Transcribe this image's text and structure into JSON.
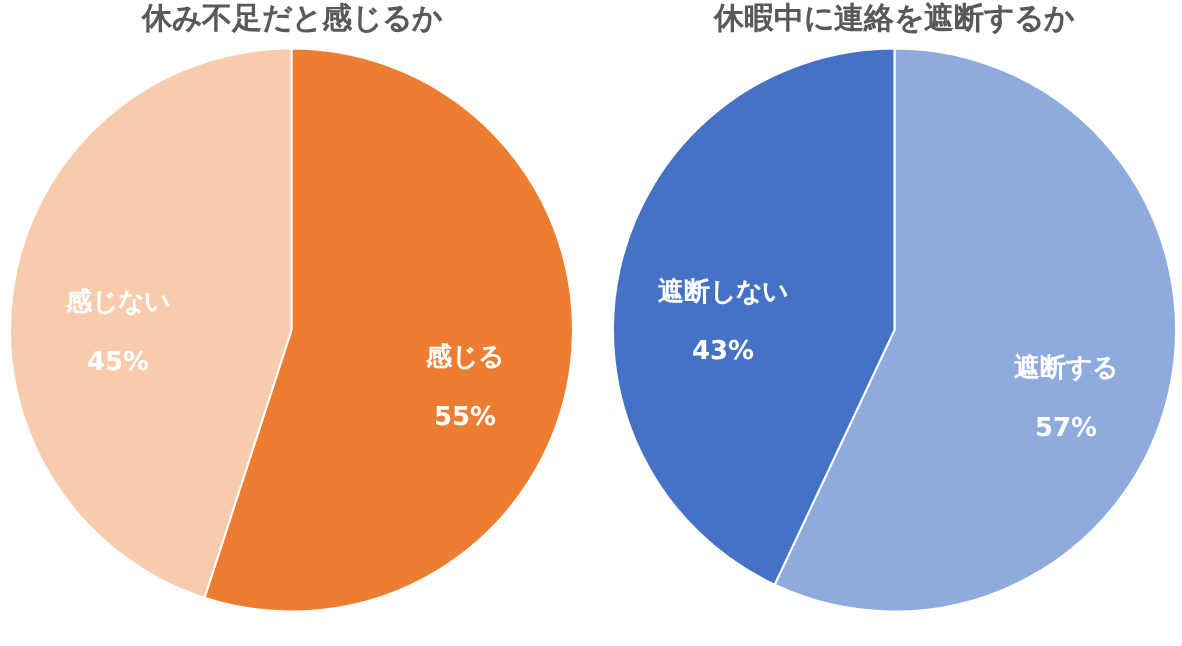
{
  "chart_data": [
    {
      "type": "pie",
      "title": "休み不足だと感じるか",
      "categories": [
        "感じる",
        "感じない"
      ],
      "values": [
        55,
        45
      ],
      "colors": [
        "#ed7d31",
        "#f8cbad"
      ],
      "value_labels": [
        "55%",
        "45%"
      ]
    },
    {
      "type": "pie",
      "title": "休暇中に連絡を遮断するか",
      "categories": [
        "遮断する",
        "遮断しない"
      ],
      "values": [
        57,
        43
      ],
      "colors": [
        "#8faadc",
        "#4472c4"
      ],
      "value_labels": [
        "57%",
        "43%"
      ]
    }
  ]
}
